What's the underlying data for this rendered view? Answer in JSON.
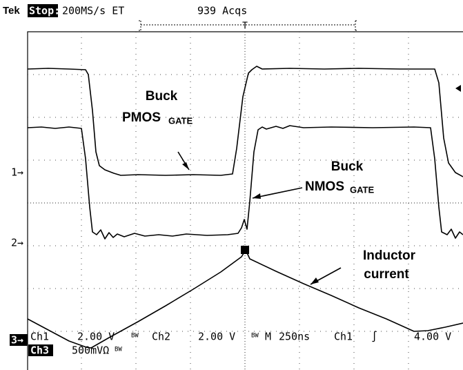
{
  "header": {
    "brand": "Tek",
    "state": "Stop:",
    "rate": "200MS/s ET",
    "acquisitions": "939 Acqs",
    "trigger": "T"
  },
  "labels": {
    "pmos": {
      "line1": "Buck",
      "line2": "PMOS",
      "subscript": "GATE"
    },
    "nmos": {
      "line1": "Buck",
      "line2": "NMOS",
      "subscript": "GATE"
    },
    "inductor": {
      "line1": "Inductor",
      "line2": "current"
    }
  },
  "channel_markers": [
    "1→",
    "2→",
    "3→"
  ],
  "status": {
    "row1": {
      "ch1": "Ch1",
      "ch1_scale": "2.00 V",
      "ch1_bw": "BW",
      "ch2": "Ch2",
      "ch2_scale": "2.00 V",
      "ch2_bw": "BW",
      "time_mode": "M",
      "time_scale": "250ns",
      "trig_source": "Ch1",
      "trig_slope": "∫",
      "trig_level": "4.00 V"
    },
    "row2": {
      "ch3": "Ch3",
      "ch3_scale": "500mVΩ",
      "ch3_bw": "BW"
    }
  }
}
